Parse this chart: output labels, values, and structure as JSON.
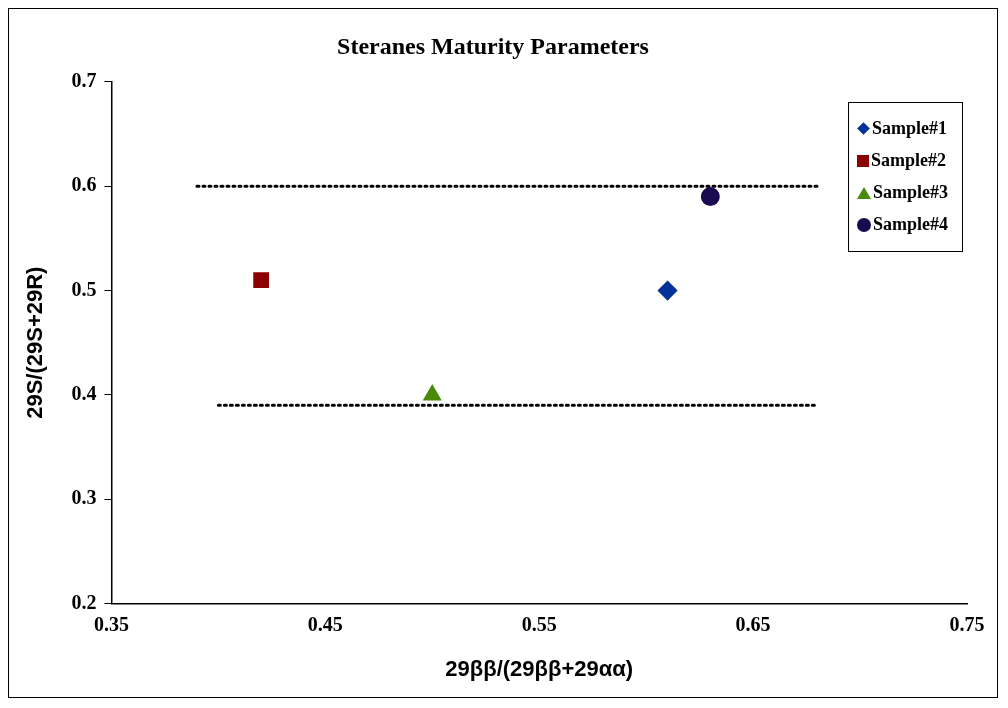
{
  "chart_data": {
    "type": "scatter",
    "title": "Steranes Maturity Parameters",
    "xlabel": "29ββ/(29ββ+29αα)",
    "ylabel": "29S/(29S+29R)",
    "xlim": [
      0.35,
      0.75
    ],
    "xticks": [
      0.35,
      0.45,
      0.55,
      0.65,
      0.75
    ],
    "ylim": [
      0.2,
      0.7
    ],
    "yticks": [
      0.2,
      0.3,
      0.4,
      0.5,
      0.6,
      0.7
    ],
    "grid": false,
    "legend": "top right",
    "series": [
      {
        "name": "Sample#1",
        "color": "#003399",
        "marker": "diamond",
        "x": [
          0.61
        ],
        "values": [
          0.5
        ]
      },
      {
        "name": "Sample#2",
        "color": "#8b0000",
        "marker": "square",
        "x": [
          0.42
        ],
        "values": [
          0.51
        ]
      },
      {
        "name": "Sample#3",
        "color": "#4a8a0a",
        "marker": "triangle",
        "x": [
          0.5
        ],
        "values": [
          0.4
        ]
      },
      {
        "name": "Sample#4",
        "color": "#1a0a50",
        "marker": "circle",
        "x": [
          0.63
        ],
        "values": [
          0.59
        ]
      },
      {
        "type": "line",
        "color": "#000000",
        "marker": "none",
        "line_style": "dotted",
        "x": [
          0.39,
          0.68
        ],
        "values": [
          0.6,
          0.6
        ]
      },
      {
        "type": "line",
        "color": "#000000",
        "marker": "none",
        "line_style": "dotted",
        "x": [
          0.4,
          0.68
        ],
        "values": [
          0.39,
          0.39
        ]
      }
    ]
  }
}
